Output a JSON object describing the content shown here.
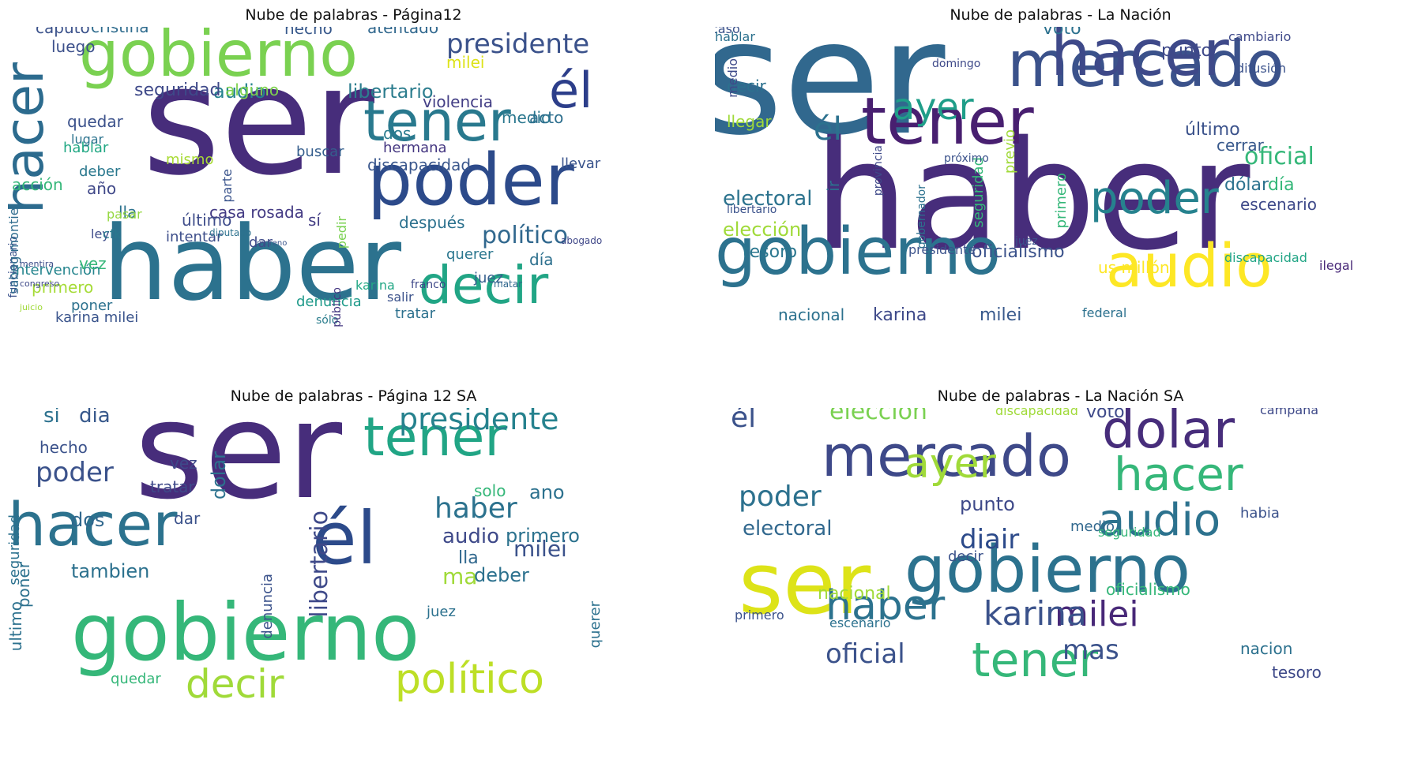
{
  "chart_data": [
    {
      "type": "wordcloud",
      "title": "Nube de palabras - Página12",
      "words": [
        [
          "ser",
          190,
          "#472d7b"
        ],
        [
          "haber",
          130,
          "#2c728e"
        ],
        [
          "poder",
          90,
          "#2c4a8a"
        ],
        [
          "gobierno",
          80,
          "#7ad151"
        ],
        [
          "tener",
          70,
          "#29798e"
        ],
        [
          "hacer",
          68,
          "#2c6b8e"
        ],
        [
          "decir",
          66,
          "#21a585"
        ],
        [
          "él",
          62,
          "#2c3e8a"
        ],
        [
          "presidente",
          34,
          "#3b528b"
        ],
        [
          "político",
          30,
          "#31688e"
        ],
        [
          "libertario",
          24,
          "#2c7d8e"
        ],
        [
          "audio",
          24,
          "#25838e"
        ],
        [
          "seguridad",
          22,
          "#3e4989"
        ],
        [
          "caputo",
          20,
          "#3b528b"
        ],
        [
          "cristina",
          20,
          "#2f6c8e"
        ],
        [
          "hecho",
          20,
          "#38598c"
        ],
        [
          "atentado",
          20,
          "#31688e"
        ],
        [
          "milei",
          20,
          "#dde318"
        ],
        [
          "violencia",
          20,
          "#433e85"
        ],
        [
          "quedar",
          20,
          "#3b518b"
        ],
        [
          "luego",
          20,
          "#3c508b"
        ],
        [
          "alguno",
          20,
          "#7fd34e"
        ],
        [
          "medio",
          20,
          "#2a778e"
        ],
        [
          "acto",
          20,
          "#2e6f8e"
        ],
        [
          "dos",
          20,
          "#2a7b8e"
        ],
        [
          "hermana",
          18,
          "#453781"
        ],
        [
          "discapacidad",
          20,
          "#39568c"
        ],
        [
          "buscar",
          18,
          "#355e8d"
        ],
        [
          "llevar",
          18,
          "#3a548c"
        ],
        [
          "hablar",
          18,
          "#22a884"
        ],
        [
          "deber",
          18,
          "#2a788e"
        ],
        [
          "mismo",
          18,
          "#a8db34"
        ],
        [
          "año",
          20,
          "#3f4788"
        ],
        [
          "casa rosada",
          20,
          "#443b84"
        ],
        [
          "último",
          20,
          "#3e4c8a"
        ],
        [
          "lla",
          20,
          "#2c728e"
        ],
        [
          "intentar",
          18,
          "#3d4e8a"
        ],
        [
          "sí",
          20,
          "#433d84"
        ],
        [
          "dar",
          18,
          "#3e4a89"
        ],
        [
          "después",
          20,
          "#2c718e"
        ],
        [
          "querer",
          18,
          "#2a768e"
        ],
        [
          "juez",
          18,
          "#355e8d"
        ],
        [
          "día",
          20,
          "#2d708e"
        ],
        [
          "franco",
          14,
          "#3f4889"
        ],
        [
          "salir",
          16,
          "#3b528b"
        ],
        [
          "karina",
          16,
          "#22a785"
        ],
        [
          "tratar",
          18,
          "#2d718e"
        ],
        [
          "denuncia",
          18,
          "#1f9a8a"
        ],
        [
          "sólo",
          14,
          "#2c7e8e"
        ],
        [
          "karina milei",
          18,
          "#3a548c"
        ],
        [
          "poner",
          18,
          "#2c718e"
        ],
        [
          "primero",
          20,
          "#a5db36"
        ],
        [
          "intervención",
          18,
          "#25858e"
        ],
        [
          "vez",
          20,
          "#35b779"
        ],
        [
          "ley",
          16,
          "#3e4c8a"
        ],
        [
          "cfk",
          16,
          "#2a788e"
        ],
        [
          "acción",
          20,
          "#35b779"
        ],
        [
          "pasar",
          16,
          "#95d840"
        ],
        [
          "lugar",
          16,
          "#2c738e"
        ],
        [
          "funcionario",
          14,
          "#3b528b"
        ],
        [
          "sabag montiel",
          16,
          "#2f6c8e"
        ],
        [
          "parte",
          16,
          "#3a548c"
        ],
        [
          "pedir",
          16,
          "#7ad151"
        ],
        [
          "público",
          14,
          "#453882"
        ],
        [
          "matar",
          12,
          "#31688e"
        ],
        [
          "diputado",
          12,
          "#2c718e"
        ],
        [
          "moreno",
          10,
          "#39568c"
        ],
        [
          "abogado",
          12,
          "#3f4788"
        ],
        [
          "juicio",
          11,
          "#a0da39"
        ],
        [
          "congreso",
          11,
          "#3e4989"
        ],
        [
          "mentira",
          11,
          "#3d4e8a"
        ]
      ]
    },
    {
      "type": "wordcloud",
      "title": "Nube de palabras - La Nación",
      "words": [
        [
          "ser",
          200,
          "#31688e"
        ],
        [
          "haber",
          190,
          "#472d7b"
        ],
        [
          "mercado",
          80,
          "#3b528b"
        ],
        [
          "hacer",
          80,
          "#3e4989"
        ],
        [
          "tener",
          82,
          "#481f70"
        ],
        [
          "gobierno",
          82,
          "#2c728e"
        ],
        [
          "audio",
          76,
          "#fde725"
        ],
        [
          "poder",
          56,
          "#26828e"
        ],
        [
          "ayer",
          46,
          "#1f9e89"
        ],
        [
          "él",
          40,
          "#2c718e"
        ],
        [
          "oficial",
          30,
          "#35b779"
        ],
        [
          "electoral",
          26,
          "#2c738e"
        ],
        [
          "elección",
          24,
          "#a0da39"
        ],
        [
          "tesoro",
          22,
          "#2a768e"
        ],
        [
          "oficialismo",
          22,
          "#3b528b"
        ],
        [
          "karina",
          22,
          "#3e4989"
        ],
        [
          "milei",
          22,
          "#38598c"
        ],
        [
          "nacional",
          20,
          "#2c718e"
        ],
        [
          "voto",
          22,
          "#2c718e"
        ],
        [
          "punto",
          22,
          "#3e4989"
        ],
        [
          "último",
          22,
          "#3b528b"
        ],
        [
          "dólar",
          22,
          "#2c728e"
        ],
        [
          "día",
          22,
          "#35b779"
        ],
        [
          "escenario",
          20,
          "#3e4989"
        ],
        [
          "cerrar",
          20,
          "#38598c"
        ],
        [
          "decir",
          20,
          "#2c718e"
        ],
        [
          "llegar",
          20,
          "#a0da39"
        ],
        [
          "ir",
          20,
          "#2c738e"
        ],
        [
          "previo",
          18,
          "#a0da39"
        ],
        [
          "seguridad",
          18,
          "#35b779"
        ],
        [
          "primero",
          18,
          "#35b779"
        ],
        [
          "us millón",
          20,
          "#fde725"
        ],
        [
          "discapacidad",
          16,
          "#21a585"
        ],
        [
          "federal",
          16,
          "#2c718e"
        ],
        [
          "presidente",
          16,
          "#3b528b"
        ],
        [
          "medio",
          16,
          "#3e4989"
        ],
        [
          "caso",
          16,
          "#3b528b"
        ],
        [
          "hablar",
          16,
          "#2c718e"
        ],
        [
          "cambiario",
          16,
          "#3e4989"
        ],
        [
          "difusión",
          16,
          "#3b528b"
        ],
        [
          "domingo",
          14,
          "#3e4989"
        ],
        [
          "próximo",
          14,
          "#3b528b"
        ],
        [
          "libertario",
          14,
          "#3b528b"
        ],
        [
          "ilegal",
          16,
          "#482878"
        ],
        [
          "juez",
          14,
          "#3b528b"
        ],
        [
          "gobernador",
          14,
          "#2c718e"
        ],
        [
          "provincia",
          14,
          "#3e4989"
        ]
      ]
    },
    {
      "type": "wordcloud",
      "title": "Nube de palabras - Página 12 SA",
      "words": [
        [
          "ser",
          170,
          "#472d7b"
        ],
        [
          "gobierno",
          100,
          "#35b779"
        ],
        [
          "hacer",
          76,
          "#2c728e"
        ],
        [
          "él",
          92,
          "#2c4a8a"
        ],
        [
          "tener",
          68,
          "#21a585"
        ],
        [
          "político",
          52,
          "#bddf26"
        ],
        [
          "decir",
          50,
          "#a0da39"
        ],
        [
          "presidente",
          38,
          "#26828e"
        ],
        [
          "haber",
          36,
          "#2c728e"
        ],
        [
          "poder",
          34,
          "#3b528b"
        ],
        [
          "libertario",
          30,
          "#3e4989"
        ],
        [
          "milei",
          28,
          "#3b528b"
        ],
        [
          "ma",
          28,
          "#a0da39"
        ],
        [
          "audio",
          26,
          "#3e4989"
        ],
        [
          "tambien",
          24,
          "#2c718e"
        ],
        [
          "dia",
          26,
          "#38598c"
        ],
        [
          "si",
          26,
          "#2c718e"
        ],
        [
          "dolar",
          24,
          "#2c728e"
        ],
        [
          "dos",
          24,
          "#31688e"
        ],
        [
          "ano",
          24,
          "#2c718e"
        ],
        [
          "primero",
          24,
          "#2c728e"
        ],
        [
          "deber",
          24,
          "#2c718e"
        ],
        [
          "hecho",
          20,
          "#3b528b"
        ],
        [
          "vez",
          20,
          "#3e4989"
        ],
        [
          "tratar",
          20,
          "#3e4989"
        ],
        [
          "dar",
          20,
          "#3b528b"
        ],
        [
          "solo",
          20,
          "#35b779"
        ],
        [
          "lla",
          22,
          "#31688e"
        ],
        [
          "ultimo",
          20,
          "#2c718e"
        ],
        [
          "poner",
          20,
          "#2c718e"
        ],
        [
          "seguridad",
          18,
          "#2c718e"
        ],
        [
          "juez",
          18,
          "#2c718e"
        ],
        [
          "quedar",
          18,
          "#35b779"
        ],
        [
          "denuncia",
          18,
          "#3b528b"
        ],
        [
          "querer",
          18,
          "#2c718e"
        ]
      ]
    },
    {
      "type": "wordcloud",
      "title": "Nube de palabras - La Nación SA",
      "words": [
        [
          "ser",
          108,
          "#dde318"
        ],
        [
          "gobierno",
          82,
          "#2c728e"
        ],
        [
          "mercado",
          72,
          "#3e4989"
        ],
        [
          "dolar",
          66,
          "#472d7b"
        ],
        [
          "tener",
          60,
          "#35b779"
        ],
        [
          "hacer",
          58,
          "#35b779"
        ],
        [
          "audio",
          56,
          "#2c728e"
        ],
        [
          "ayer",
          52,
          "#a0da39"
        ],
        [
          "haber",
          52,
          "#2c728e"
        ],
        [
          "milei",
          44,
          "#482878"
        ],
        [
          "karina",
          42,
          "#3b528b"
        ],
        [
          "poder",
          36,
          "#2c718e"
        ],
        [
          "diair",
          34,
          "#2c4a8a"
        ],
        [
          "mas",
          34,
          "#3b528b"
        ],
        [
          "él",
          36,
          "#3b528b"
        ],
        [
          "oficial",
          34,
          "#3b528b"
        ],
        [
          "elección",
          30,
          "#7ad151"
        ],
        [
          "electoral",
          26,
          "#31688e"
        ],
        [
          "punto",
          24,
          "#3e4989"
        ],
        [
          "nacional",
          22,
          "#a0da39"
        ],
        [
          "voto",
          22,
          "#3e4989"
        ],
        [
          "oficialismo",
          20,
          "#35b779"
        ],
        [
          "nacion",
          20,
          "#2c718e"
        ],
        [
          "tesoro",
          20,
          "#3e4989"
        ],
        [
          "habia",
          18,
          "#3b528b"
        ],
        [
          "medio",
          18,
          "#31688e"
        ],
        [
          "decir",
          18,
          "#3b528b"
        ],
        [
          "escenario",
          16,
          "#2c718e"
        ],
        [
          "seguridad",
          16,
          "#35b779"
        ],
        [
          "primero",
          16,
          "#3b528b"
        ],
        [
          "campana",
          16,
          "#3e4989"
        ],
        [
          "discapacidad",
          16,
          "#a0da39"
        ]
      ]
    }
  ]
}
